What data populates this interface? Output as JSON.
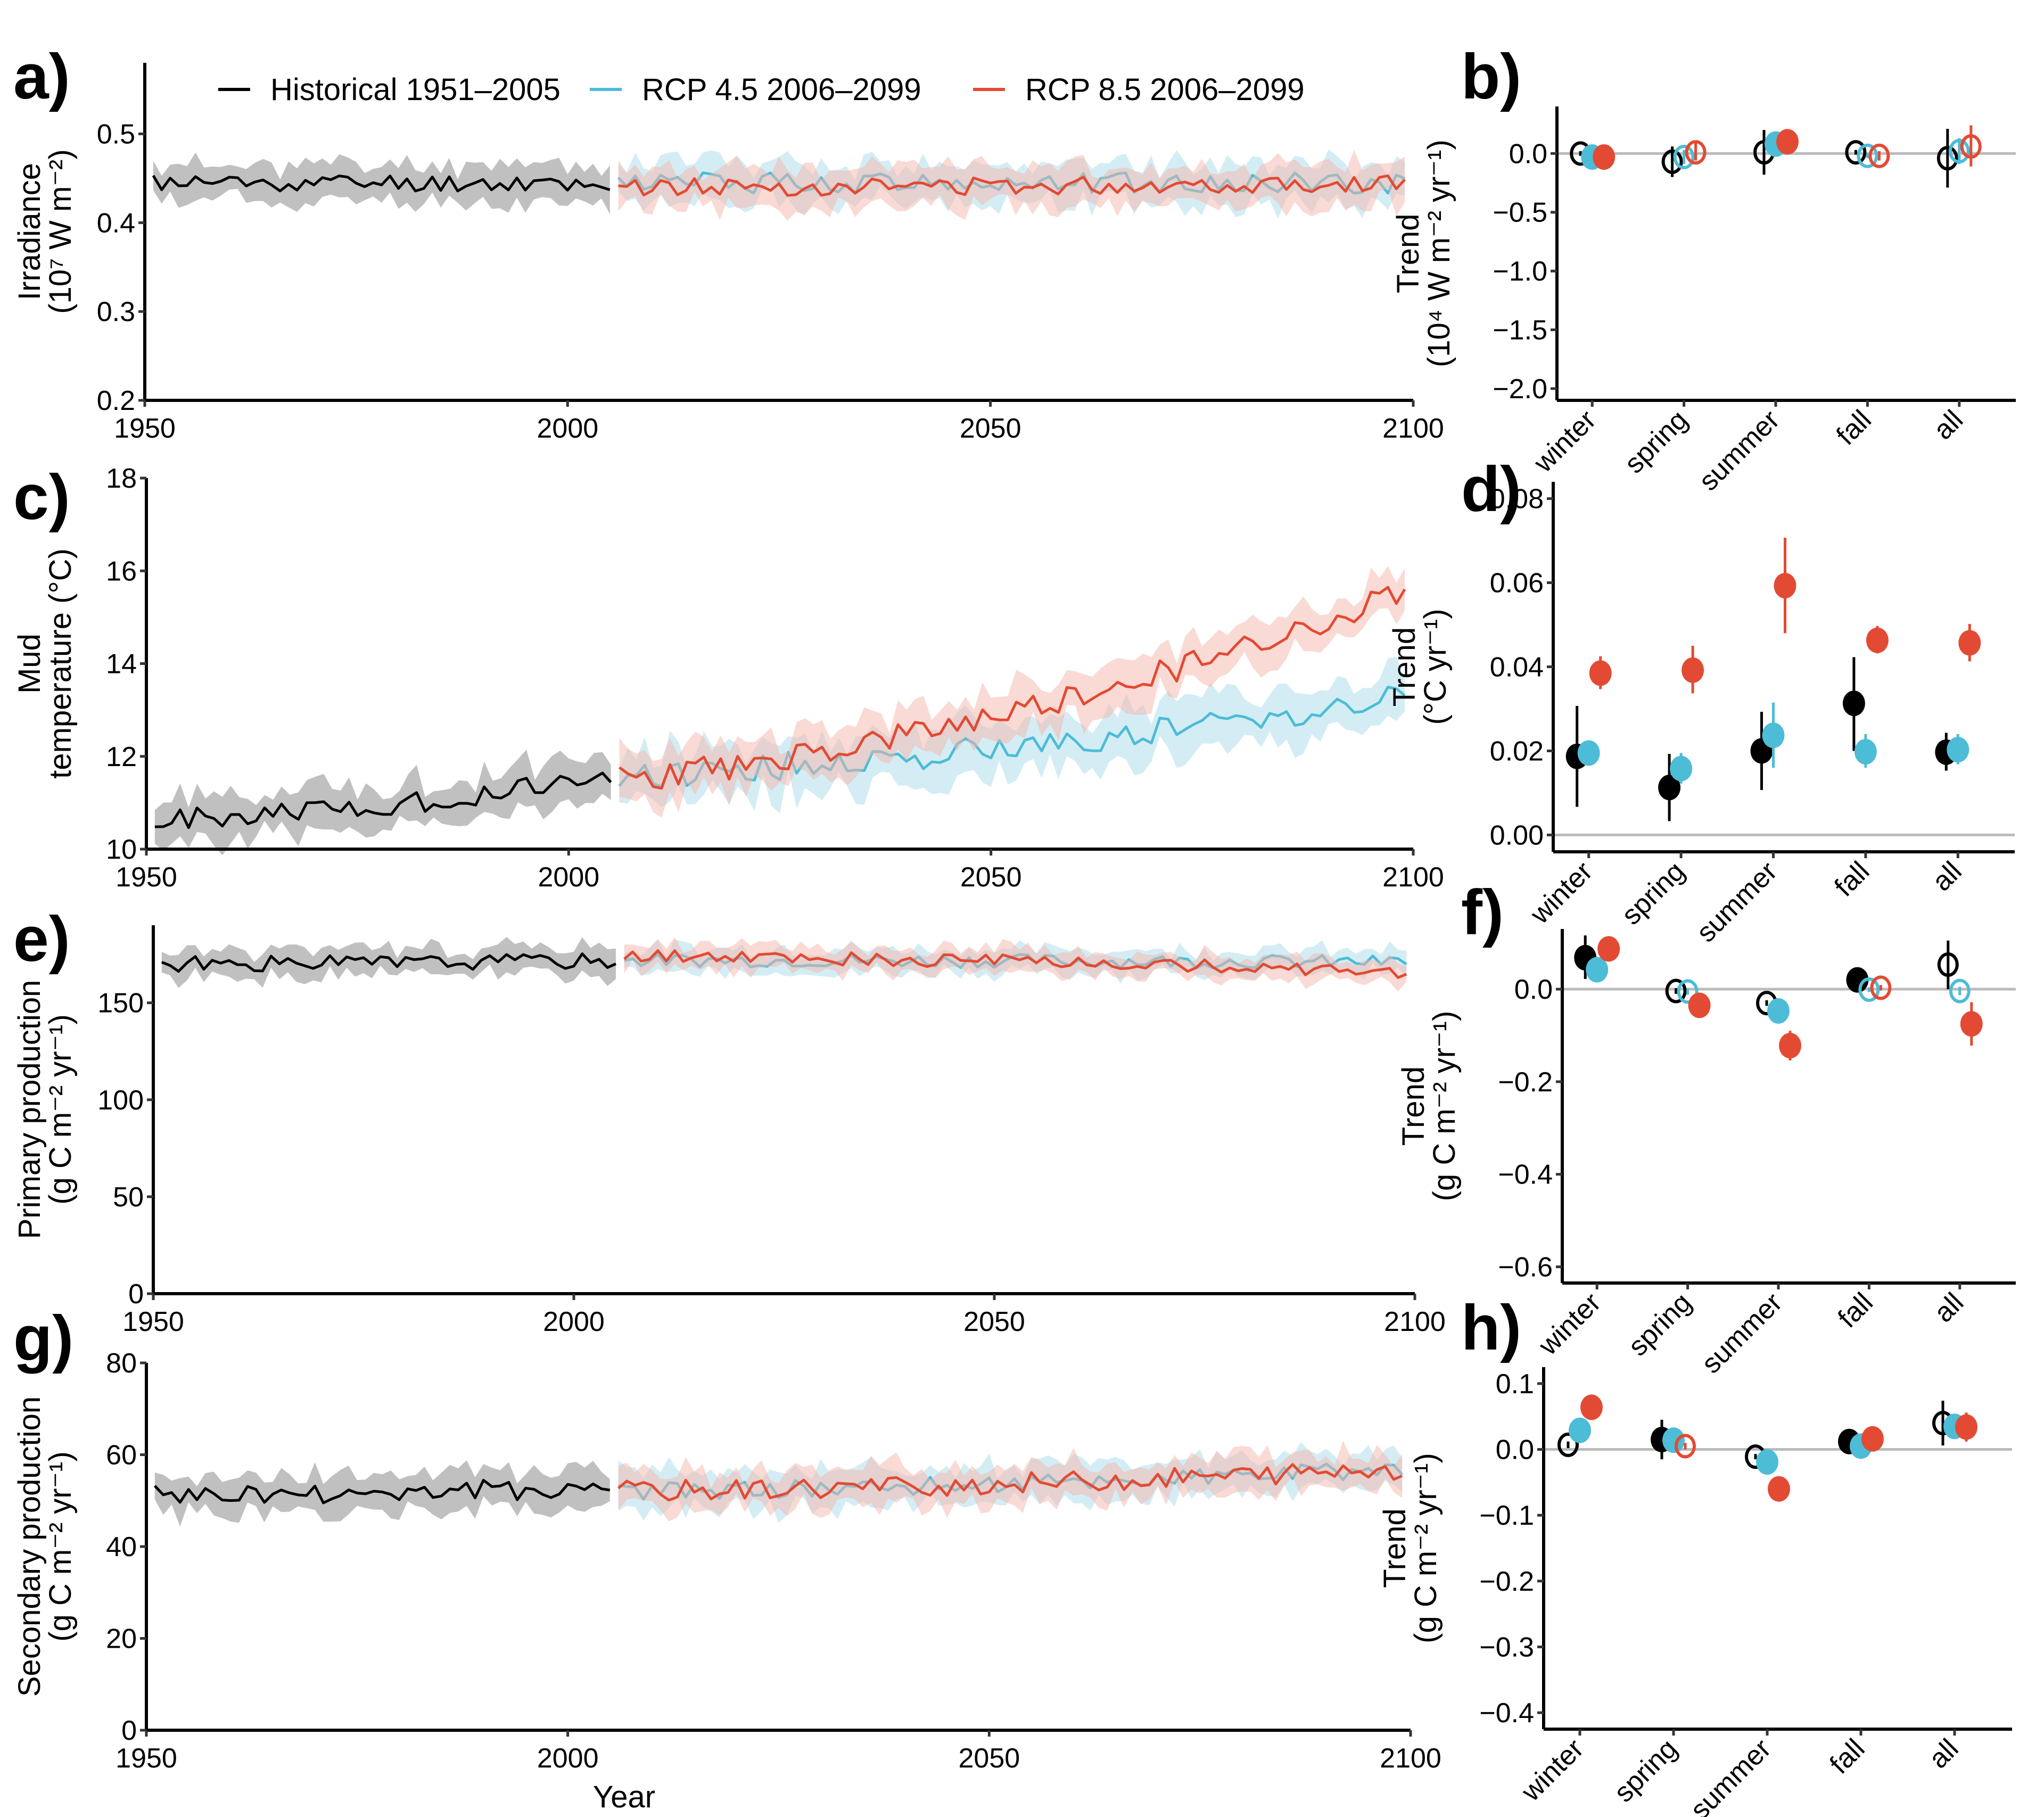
{
  "colors": {
    "historical": "#000000",
    "rcp45": "#4dbcd6",
    "rcp85": "#e34a33",
    "historical_band": "#bdbdbd",
    "rcp45_band": "#a9dbe9",
    "rcp85_band": "#f3b5ab",
    "zero_line": "#bbbbbb"
  },
  "legend": {
    "items": [
      {
        "label": "Historical 1951–2005",
        "series": "historical"
      },
      {
        "label": "RCP 4.5 2006–2099",
        "series": "rcp45"
      },
      {
        "label": "RCP 8.5 2006–2099",
        "series": "rcp85"
      }
    ]
  },
  "chart_data": [
    {
      "id": "a",
      "panel_label": "a)",
      "type": "line",
      "title": "",
      "xlabel": "",
      "ylabel_lines": [
        "Irradiance",
        "(10⁷ W m⁻²)"
      ],
      "xlim": [
        1950,
        2100
      ],
      "ylim": [
        0.2,
        0.58
      ],
      "xticks": [
        1950,
        2000,
        2050,
        2100
      ],
      "yticks": [
        0.2,
        0.3,
        0.4,
        0.5
      ],
      "ytick_labels": [
        "0.2",
        "0.3",
        "0.4",
        "0.5"
      ],
      "legend": "top",
      "series": [
        {
          "name": "Historical 1951–2005",
          "key": "historical",
          "start": 1951,
          "end": 2005,
          "mean_start": 0.445,
          "mean_end": 0.445,
          "noise": 0.01,
          "band": 0.02,
          "seed": 11
        },
        {
          "name": "RCP 4.5 2006–2099",
          "key": "rcp45",
          "start": 2006,
          "end": 2099,
          "mean_start": 0.445,
          "mean_end": 0.445,
          "noise": 0.012,
          "band": 0.022,
          "seed": 12
        },
        {
          "name": "RCP 8.5 2006–2099",
          "key": "rcp85",
          "start": 2006,
          "end": 2099,
          "mean_start": 0.44,
          "mean_end": 0.445,
          "noise": 0.01,
          "band": 0.022,
          "seed": 13
        }
      ]
    },
    {
      "id": "b",
      "panel_label": "b)",
      "type": "scatter",
      "ylabel_lines": [
        "Trend",
        "(10⁴ W m⁻² yr⁻¹)"
      ],
      "categories": [
        "winter",
        "spring",
        "summer",
        "fall",
        "all"
      ],
      "ylim": [
        -2.1,
        0.4
      ],
      "yticks": [
        -2.0,
        -1.5,
        -1.0,
        -0.5,
        0.0
      ],
      "ytick_labels": [
        "−2.0",
        "−1.5",
        "−1.0",
        "−0.5",
        "0.0"
      ],
      "series": [
        {
          "key": "historical",
          "values": [
            0.0,
            -0.07,
            0.01,
            0.01,
            -0.04
          ],
          "lo": [
            -0.02,
            -0.2,
            -0.18,
            -0.01,
            -0.29
          ],
          "hi": [
            0.02,
            0.06,
            0.2,
            0.03,
            0.21
          ],
          "filled": [
            false,
            false,
            false,
            false,
            false
          ]
        },
        {
          "key": "rcp45",
          "values": [
            -0.03,
            -0.03,
            0.08,
            -0.02,
            0.02
          ],
          "lo": [
            -0.05,
            -0.09,
            0.04,
            -0.04,
            -0.09
          ],
          "hi": [
            -0.01,
            0.03,
            0.12,
            0.0,
            0.13
          ],
          "filled": [
            true,
            false,
            true,
            false,
            false
          ]
        },
        {
          "key": "rcp85",
          "values": [
            -0.03,
            0.01,
            0.1,
            -0.02,
            0.06
          ],
          "lo": [
            -0.05,
            -0.06,
            0.01,
            -0.06,
            -0.11
          ],
          "hi": [
            -0.01,
            0.09,
            0.2,
            0.02,
            0.24
          ],
          "filled": [
            true,
            false,
            true,
            false,
            false
          ]
        }
      ]
    },
    {
      "id": "c",
      "panel_label": "c)",
      "type": "line",
      "xlabel": "",
      "ylabel_lines": [
        "Mud",
        "temperature (°C)"
      ],
      "xlim": [
        1950,
        2100
      ],
      "ylim": [
        10,
        18
      ],
      "xticks": [
        1950,
        2000,
        2050,
        2100
      ],
      "yticks": [
        10,
        12,
        14,
        16,
        18
      ],
      "ytick_labels": [
        "10",
        "12",
        "14",
        "16",
        "18"
      ],
      "series": [
        {
          "name": "Historical 1951–2005",
          "key": "historical",
          "start": 1951,
          "end": 2005,
          "mean_start": 10.6,
          "mean_end": 11.6,
          "noise": 0.25,
          "band": 0.45,
          "seed": 21
        },
        {
          "name": "RCP 4.5 2006–2099",
          "key": "rcp45",
          "start": 2006,
          "end": 2099,
          "mean_start": 11.6,
          "mean_end": 13.3,
          "noise": 0.3,
          "band": 0.55,
          "seed": 22
        },
        {
          "name": "RCP 8.5 2006–2099",
          "key": "rcp85",
          "start": 2006,
          "end": 2099,
          "mean_start": 11.5,
          "mean_end": 15.6,
          "noise": 0.3,
          "band": 0.5,
          "seed": 23
        }
      ]
    },
    {
      "id": "d",
      "panel_label": "d)",
      "type": "scatter",
      "ylabel_lines": [
        "Trend",
        "(°C yr⁻¹)"
      ],
      "categories": [
        "winter",
        "spring",
        "summer",
        "fall",
        "all"
      ],
      "ylim": [
        -0.004,
        0.084
      ],
      "yticks": [
        0.0,
        0.02,
        0.04,
        0.06,
        0.08
      ],
      "ytick_labels": [
        "0.00",
        "0.02",
        "0.04",
        "0.06",
        "0.08"
      ],
      "series": [
        {
          "key": "historical",
          "values": [
            0.0187,
            0.0113,
            0.02,
            0.0313,
            0.0197
          ],
          "lo": [
            0.0067,
            0.0033,
            0.0107,
            0.02,
            0.0153
          ],
          "hi": [
            0.0307,
            0.0193,
            0.0293,
            0.0423,
            0.0243
          ],
          "filled": [
            true,
            true,
            true,
            true,
            true
          ]
        },
        {
          "key": "rcp45",
          "values": [
            0.0195,
            0.0158,
            0.0237,
            0.0198,
            0.0203
          ],
          "lo": [
            0.017,
            0.0122,
            0.016,
            0.016,
            0.0168
          ],
          "hi": [
            0.022,
            0.0195,
            0.0315,
            0.024,
            0.024
          ],
          "filled": [
            true,
            true,
            true,
            true,
            true
          ]
        },
        {
          "key": "rcp85",
          "values": [
            0.0385,
            0.0392,
            0.0593,
            0.0463,
            0.0457
          ],
          "lo": [
            0.0347,
            0.0337,
            0.048,
            0.0432,
            0.0413
          ],
          "hi": [
            0.0425,
            0.045,
            0.0707,
            0.0497,
            0.0502
          ],
          "filled": [
            true,
            true,
            true,
            true,
            true
          ]
        }
      ]
    },
    {
      "id": "e",
      "panel_label": "e)",
      "type": "line",
      "xlabel": "",
      "ylabel_lines": [
        "Primary production",
        "(g C m⁻² yr⁻¹)"
      ],
      "xlim": [
        1950,
        2100
      ],
      "ylim": [
        0,
        190
      ],
      "xticks": [
        1950,
        2000,
        2050,
        2100
      ],
      "yticks": [
        0,
        50,
        100,
        150
      ],
      "ytick_labels": [
        "0",
        "50",
        "100",
        "150"
      ],
      "series": [
        {
          "name": "Historical 1951–2005",
          "key": "historical",
          "start": 1951,
          "end": 2005,
          "mean_start": 170,
          "mean_end": 172,
          "noise": 4,
          "band": 7,
          "seed": 31
        },
        {
          "name": "RCP 4.5 2006–2099",
          "key": "rcp45",
          "start": 2006,
          "end": 2099,
          "mean_start": 172,
          "mean_end": 171,
          "noise": 3.5,
          "band": 6,
          "seed": 32
        },
        {
          "name": "RCP 8.5 2006–2099",
          "key": "rcp85",
          "start": 2006,
          "end": 2099,
          "mean_start": 174,
          "mean_end": 166,
          "noise": 3.5,
          "band": 6,
          "seed": 33
        }
      ]
    },
    {
      "id": "f",
      "panel_label": "f)",
      "type": "scatter",
      "ylabel_lines": [
        "Trend",
        "(g C m⁻² yr⁻¹)"
      ],
      "categories": [
        "winter",
        "spring",
        "summer",
        "fall",
        "all"
      ],
      "ylim": [
        -0.635,
        0.13
      ],
      "yticks": [
        -0.6,
        -0.4,
        -0.2,
        0.0
      ],
      "ytick_labels": [
        "−0.6",
        "−0.4",
        "−0.2",
        "0.0"
      ],
      "series": [
        {
          "key": "historical",
          "values": [
            0.068,
            -0.004,
            -0.03,
            0.02,
            0.053
          ],
          "lo": [
            0.022,
            -0.01,
            -0.036,
            0.014,
            0.0
          ],
          "hi": [
            0.116,
            0.002,
            -0.024,
            0.026,
            0.105
          ],
          "filled": [
            true,
            false,
            false,
            true,
            false
          ]
        },
        {
          "key": "rcp45",
          "values": [
            0.042,
            -0.005,
            -0.047,
            -0.001,
            -0.004
          ],
          "lo": [
            0.036,
            -0.012,
            -0.053,
            -0.006,
            -0.013
          ],
          "hi": [
            0.048,
            0.002,
            -0.041,
            0.004,
            0.005
          ],
          "filled": [
            true,
            false,
            true,
            false,
            false
          ]
        },
        {
          "key": "rcp85",
          "values": [
            0.087,
            -0.035,
            -0.122,
            0.003,
            -0.075
          ],
          "lo": [
            0.081,
            -0.041,
            -0.154,
            -0.003,
            -0.122
          ],
          "hi": [
            0.093,
            -0.029,
            -0.09,
            0.009,
            -0.028
          ],
          "filled": [
            true,
            true,
            true,
            false,
            true
          ]
        }
      ]
    },
    {
      "id": "g",
      "panel_label": "g)",
      "type": "line",
      "xlabel": "Year",
      "ylabel_lines": [
        "Secondary production",
        "(g C m⁻² yr⁻¹)"
      ],
      "xlim": [
        1950,
        2100
      ],
      "ylim": [
        0,
        80
      ],
      "xticks": [
        1950,
        2000,
        2050,
        2100
      ],
      "yticks": [
        0,
        20,
        40,
        60,
        80
      ],
      "ytick_labels": [
        "0",
        "20",
        "40",
        "60",
        "80"
      ],
      "series": [
        {
          "name": "Historical 1951–2005",
          "key": "historical",
          "start": 1951,
          "end": 2005,
          "mean_start": 51,
          "mean_end": 53,
          "noise": 2.3,
          "band": 4,
          "seed": 41
        },
        {
          "name": "RCP 4.5 2006–2099",
          "key": "rcp45",
          "start": 2006,
          "end": 2099,
          "mean_start": 52,
          "mean_end": 57,
          "noise": 2,
          "band": 4,
          "seed": 42
        },
        {
          "name": "RCP 8.5 2006–2099",
          "key": "rcp85",
          "start": 2006,
          "end": 2099,
          "mean_start": 52,
          "mean_end": 57,
          "noise": 2.3,
          "band": 4,
          "seed": 43
        }
      ]
    },
    {
      "id": "h",
      "panel_label": "h)",
      "type": "scatter",
      "ylabel_lines": [
        "Trend",
        "(g C m⁻² yr⁻¹)"
      ],
      "categories": [
        "winter",
        "spring",
        "summer",
        "fall",
        "all"
      ],
      "ylim": [
        -0.425,
        0.125
      ],
      "yticks": [
        -0.4,
        -0.3,
        -0.2,
        -0.1,
        0.0,
        0.1
      ],
      "ytick_labels": [
        "−0.4",
        "−0.3",
        "−0.2",
        "−0.1",
        "0.0",
        "0.1"
      ],
      "series": [
        {
          "key": "historical",
          "values": [
            0.007,
            0.015,
            -0.011,
            0.012,
            0.04
          ],
          "lo": [
            0.002,
            -0.015,
            -0.015,
            0.008,
            0.006
          ],
          "hi": [
            0.012,
            0.045,
            -0.007,
            0.016,
            0.074
          ],
          "filled": [
            false,
            true,
            false,
            true,
            false
          ]
        },
        {
          "key": "rcp45",
          "values": [
            0.029,
            0.014,
            -0.019,
            0.005,
            0.035
          ],
          "lo": [
            0.024,
            0.009,
            -0.024,
            0.0,
            0.03
          ],
          "hi": [
            0.034,
            0.019,
            -0.014,
            0.01,
            0.04
          ],
          "filled": [
            true,
            true,
            true,
            true,
            true
          ]
        },
        {
          "key": "rcp85",
          "values": [
            0.064,
            0.005,
            -0.06,
            0.016,
            0.034
          ],
          "lo": [
            0.046,
            0.0,
            -0.075,
            0.011,
            0.012
          ],
          "hi": [
            0.082,
            0.01,
            -0.045,
            0.021,
            0.056
          ],
          "filled": [
            true,
            false,
            true,
            true,
            true
          ]
        }
      ]
    }
  ]
}
